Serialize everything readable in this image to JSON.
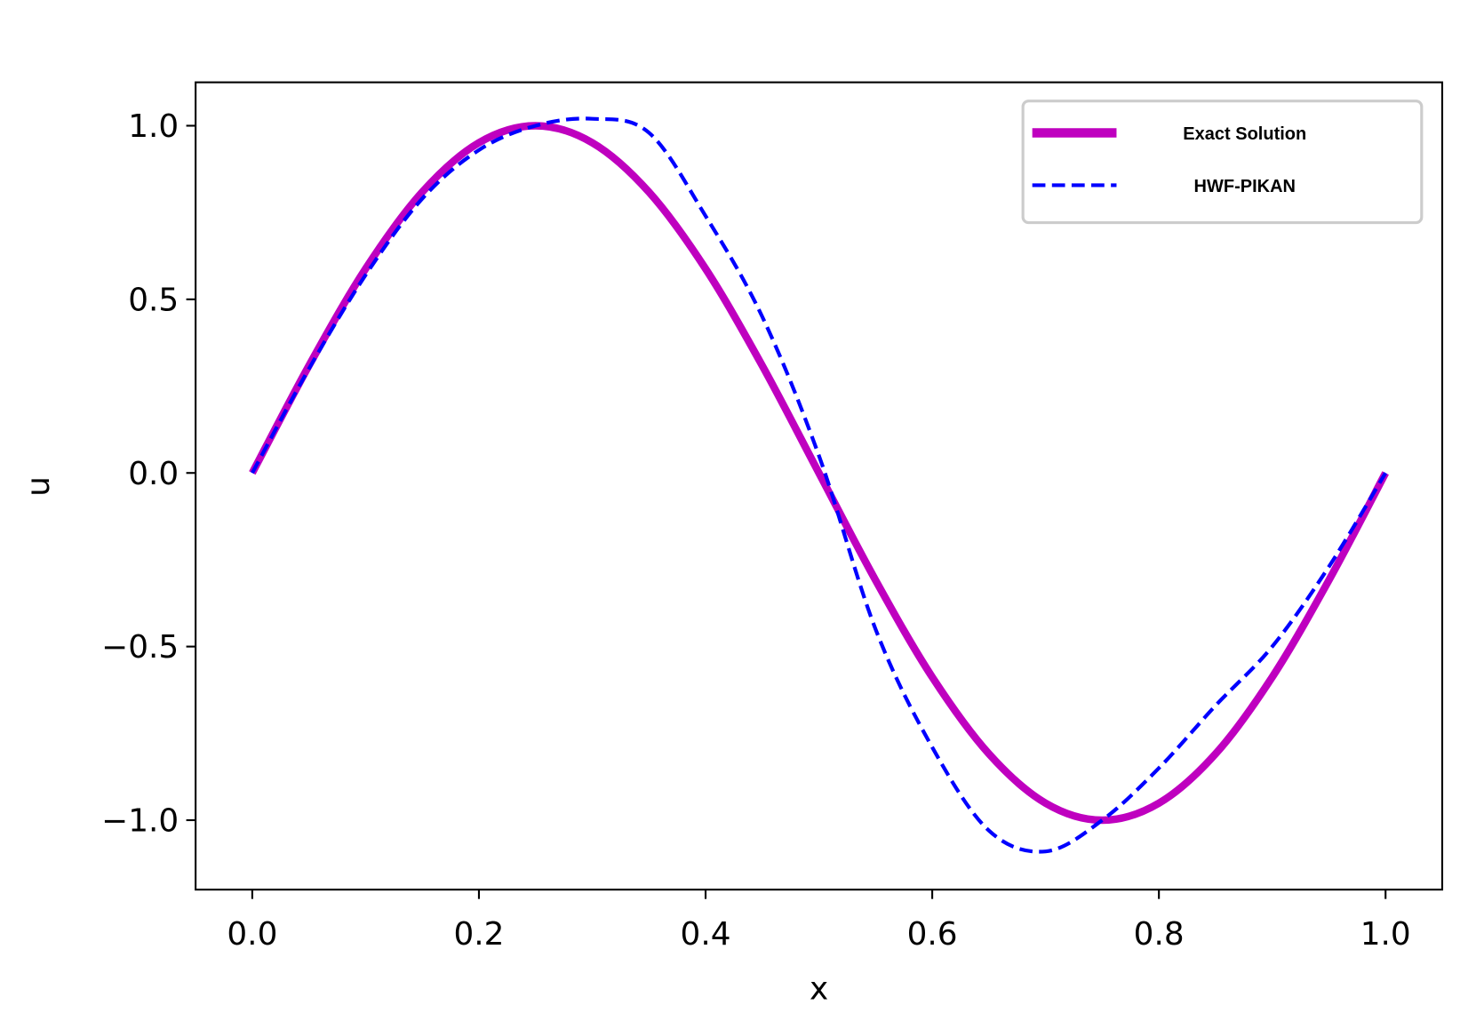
{
  "chart_data": {
    "type": "line",
    "x_label": "x",
    "y_label": "u",
    "x": [
      0,
      0.05,
      0.1,
      0.15,
      0.2,
      0.25,
      0.3,
      0.35,
      0.4,
      0.45,
      0.5,
      0.55,
      0.6,
      0.65,
      0.7,
      0.75,
      0.8,
      0.85,
      0.9,
      0.95,
      1.0
    ],
    "series": [
      {
        "name": "Exact Solution",
        "color": "#bf00bf",
        "style": "solid",
        "values": [
          0,
          0.309,
          0.588,
          0.809,
          0.951,
          1.0,
          0.951,
          0.809,
          0.588,
          0.309,
          0,
          -0.309,
          -0.588,
          -0.809,
          -0.951,
          -1.0,
          -0.951,
          -0.809,
          -0.588,
          -0.309,
          0
        ]
      },
      {
        "name": "HWF-PIKAN",
        "color": "#0000ff",
        "style": "dashed",
        "values": [
          0,
          0.3,
          0.57,
          0.79,
          0.93,
          1.0,
          1.02,
          0.98,
          0.74,
          0.45,
          0.05,
          -0.45,
          -0.79,
          -1.03,
          -1.09,
          -1.0,
          -0.85,
          -0.67,
          -0.5,
          -0.27,
          0
        ]
      }
    ],
    "xlim": [
      -0.05,
      1.05
    ],
    "xticks": [
      0.0,
      0.2,
      0.4,
      0.6,
      0.8,
      1.0
    ],
    "ylim": [
      -1.2,
      1.125
    ],
    "yticks": [
      -1.0,
      -0.5,
      0.0,
      0.5,
      1.0
    ],
    "legend": "upper right",
    "grid": false
  }
}
